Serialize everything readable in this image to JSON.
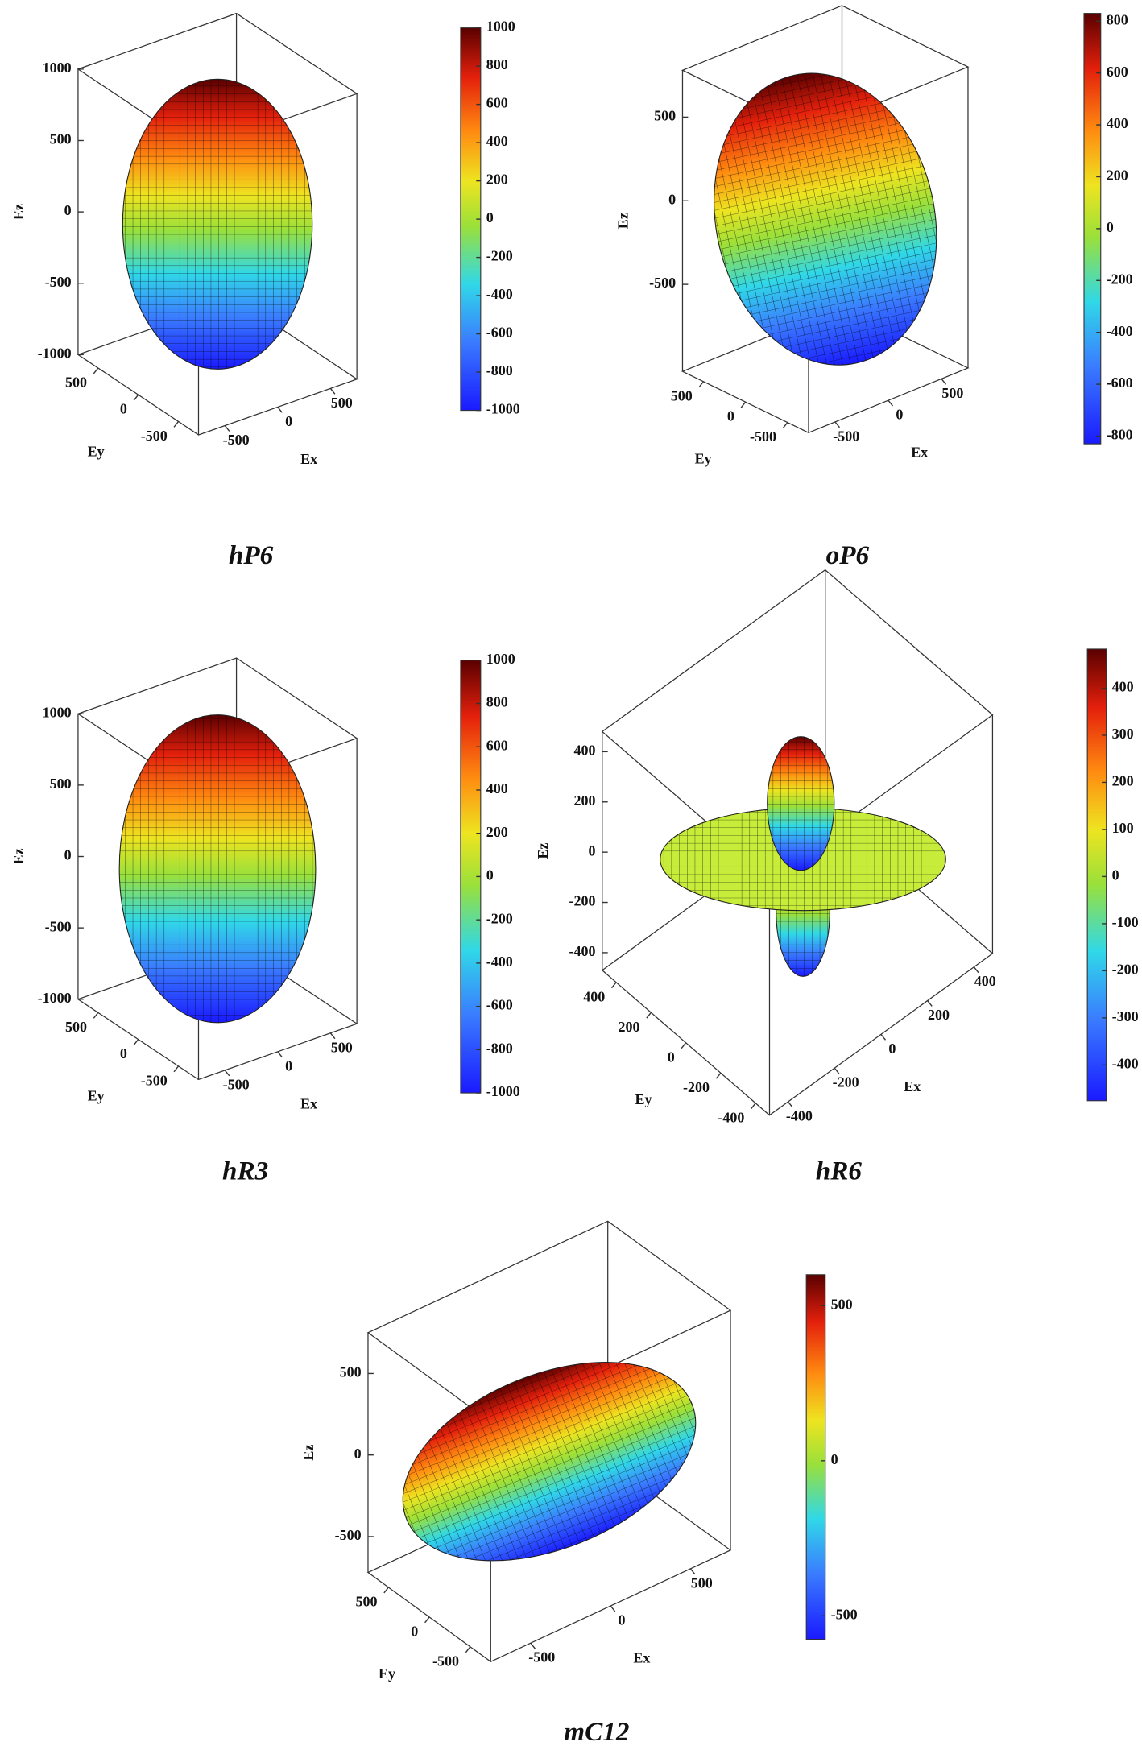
{
  "chart_data": [
    {
      "type": "surface3d",
      "title": "hP6",
      "xlabel": "Ex",
      "ylabel": "Ey",
      "zlabel": "Ez",
      "xlim": [
        -750,
        750
      ],
      "xticks": [
        -500,
        0,
        500
      ],
      "ylim": [
        -750,
        750
      ],
      "yticks": [
        -500,
        0,
        500
      ],
      "zlim": [
        -1000,
        1000
      ],
      "zticks": [
        -1000,
        -500,
        0,
        500,
        1000
      ],
      "clim": [
        -1000,
        1000
      ],
      "cticks": [
        -1000,
        -800,
        -600,
        -400,
        -200,
        0,
        200,
        400,
        600,
        800,
        1000
      ],
      "colormap": "jet"
    },
    {
      "type": "surface3d",
      "title": "oP6",
      "xlabel": "Ex",
      "ylabel": "Ey",
      "zlabel": "Ez",
      "xlim": [
        -750,
        750
      ],
      "xticks": [
        -500,
        0,
        500
      ],
      "ylim": [
        -750,
        750
      ],
      "yticks": [
        -500,
        0,
        500
      ],
      "zlim": [
        -1020,
        780
      ],
      "zticks": [
        -500,
        0,
        500
      ],
      "clim": [
        -830,
        830
      ],
      "cticks": [
        -800,
        -600,
        -400,
        -200,
        0,
        200,
        400,
        600,
        800
      ],
      "colormap": "jet"
    },
    {
      "type": "surface3d",
      "title": "hR3",
      "xlabel": "Ex",
      "ylabel": "Ey",
      "zlabel": "Ez",
      "xlim": [
        -750,
        750
      ],
      "xticks": [
        -500,
        0,
        500
      ],
      "ylim": [
        -750,
        750
      ],
      "yticks": [
        -500,
        0,
        500
      ],
      "zlim": [
        -1000,
        1000
      ],
      "zticks": [
        -1000,
        -500,
        0,
        500,
        1000
      ],
      "clim": [
        -1000,
        1000
      ],
      "cticks": [
        -1000,
        -800,
        -600,
        -400,
        -200,
        0,
        200,
        400,
        600,
        800,
        1000
      ],
      "colormap": "jet"
    },
    {
      "type": "surface3d",
      "title": "hR6",
      "xlabel": "Ex",
      "ylabel": "Ey",
      "zlabel": "Ez",
      "xlim": [
        -480,
        480
      ],
      "xticks": [
        -400,
        -200,
        0,
        200,
        400
      ],
      "ylim": [
        -480,
        480
      ],
      "yticks": [
        -400,
        -200,
        0,
        200,
        400
      ],
      "zlim": [
        -470,
        480
      ],
      "zticks": [
        -400,
        -200,
        0,
        200,
        400
      ],
      "clim": [
        -476,
        483
      ],
      "cticks": [
        -400,
        -300,
        -200,
        -100,
        0,
        100,
        200,
        300,
        400
      ],
      "colormap": "jet"
    },
    {
      "type": "surface3d",
      "title": "mC12",
      "xlabel": "Ex",
      "ylabel": "Ey",
      "zlabel": "Ez",
      "xlim": [
        -750,
        750
      ],
      "xticks": [
        -500,
        0,
        500
      ],
      "ylim": [
        -750,
        750
      ],
      "yticks": [
        -500,
        0,
        500
      ],
      "zlim": [
        -720,
        750
      ],
      "zticks": [
        -500,
        0,
        500
      ],
      "clim": [
        -576,
        600
      ],
      "cticks": [
        -500,
        0,
        500
      ],
      "colormap": "jet"
    }
  ]
}
